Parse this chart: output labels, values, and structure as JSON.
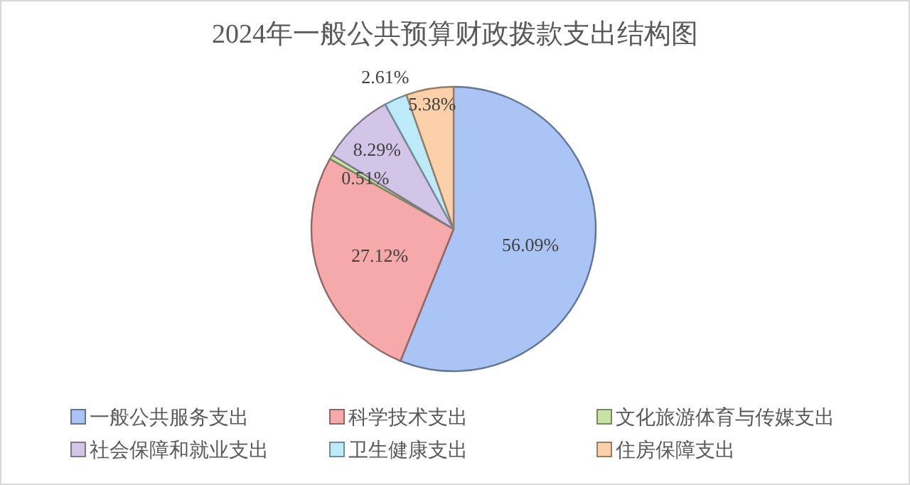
{
  "chart_data": {
    "type": "pie",
    "title": "2024年一般公共预算财政拨款支出结构图",
    "categories": [
      "一般公共服务支出",
      "科学技术支出",
      "文化旅游体育与传媒支出",
      "社会保障和就业支出",
      "卫生健康支出",
      "住房保障支出"
    ],
    "values": [
      56.09,
      27.12,
      0.51,
      8.29,
      2.61,
      5.38
    ],
    "colors": [
      "#a9c4f5",
      "#f6a9a9",
      "#c9e3a3",
      "#d3c5e8",
      "#bdeaf8",
      "#fcd1aa"
    ],
    "value_labels": [
      "56.09%",
      "27.12%",
      "0.51%",
      "8.29%",
      "2.61%",
      "5.38%"
    ],
    "legend": "bottom"
  }
}
